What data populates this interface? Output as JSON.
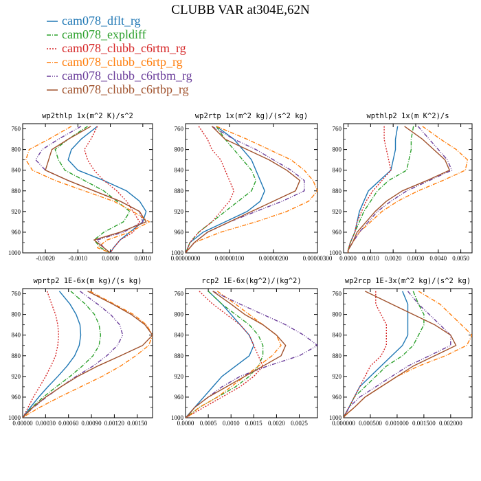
{
  "figure": {
    "title": "CLUBB VAR at304E,62N"
  },
  "legend": [
    {
      "name": "cam078_dflt_rg",
      "color": "#1f77b4",
      "dash": ""
    },
    {
      "name": "cam078_expldiff",
      "color": "#2ca02c",
      "dash": "6,2,1,2"
    },
    {
      "name": "cam078_clubb_c6rtm_rg",
      "color": "#d62728",
      "dash": "2,2"
    },
    {
      "name": "cam078_clubb_c6rtp_rg",
      "color": "#ff7f0e",
      "dash": "6,2,1,2"
    },
    {
      "name": "cam078_clubb_c6rtbm_rg",
      "color": "#6a3d9a",
      "dash": "6,2,1,2,1,2"
    },
    {
      "name": "cam078_clubb_c6rtbp_rg",
      "color": "#a0522d",
      "dash": ""
    }
  ],
  "chart_data": [
    {
      "type": "line",
      "title": "wp2thlp  1x(m^2 K)/s^2",
      "xlim": [
        -0.0027,
        0.0013
      ],
      "ylim": [
        1000,
        750
      ],
      "xticks": [
        "-0.0020",
        "-0.0010",
        "0.0000",
        "0.0010"
      ],
      "xtick_values": [
        -0.002,
        -0.001,
        0,
        0.001
      ],
      "yticks": [
        760,
        800,
        840,
        880,
        920,
        960,
        1000
      ],
      "y": [
        755,
        780,
        800,
        820,
        840,
        860,
        880,
        900,
        920,
        940,
        960,
        975,
        990,
        1000
      ],
      "series": [
        {
          "name": "cam078_dflt_rg",
          "values": [
            -0.0004,
            -0.0009,
            -0.0012,
            -0.0013,
            -0.001,
            -0.0002,
            0.0005,
            0.0009,
            0.0011,
            0.001,
            0.0006,
            0.0003,
            0.0001,
            0
          ]
        },
        {
          "name": "cam078_expldiff",
          "values": [
            -0.0007,
            -0.0013,
            -0.0017,
            -0.0016,
            -0.0014,
            -0.0008,
            -0.0002,
            0.0002,
            0.0006,
            0.0004,
            -0.0002,
            -0.0005,
            -0.0003,
            0
          ]
        },
        {
          "name": "cam078_clubb_c6rtm_rg",
          "values": [
            -0.0004,
            -0.0006,
            -0.0008,
            -0.0007,
            -0.0005,
            -0.0002,
            0.0002,
            0.0005,
            0.0007,
            0.0009,
            0.0007,
            0.0003,
            0.0001,
            0
          ]
        },
        {
          "name": "cam078_clubb_c6rtp_rg",
          "values": [
            -0.0012,
            -0.0019,
            -0.0025,
            -0.0026,
            -0.0024,
            -0.0017,
            -0.0008,
            0.0001,
            0.0007,
            0.0012,
            0.0006,
            -0.0001,
            -0.0004,
            0
          ]
        },
        {
          "name": "cam078_clubb_c6rtbm_rg",
          "values": [
            -0.0009,
            -0.0016,
            -0.0021,
            -0.0023,
            -0.002,
            -0.0013,
            -0.0005,
            0.0003,
            0.0009,
            0.001,
            0.0004,
            -0.0004,
            -0.0002,
            0
          ]
        },
        {
          "name": "cam078_clubb_c6rtbp_rg",
          "values": [
            -0.0006,
            -0.0013,
            -0.0018,
            -0.0019,
            -0.002,
            -0.0013,
            -0.0005,
            0.0003,
            0.0009,
            0.0011,
            0.0003,
            -0.0005,
            -0.0002,
            0
          ]
        }
      ]
    },
    {
      "type": "line",
      "title": "wp2rtp  1x(m^2 kg)/(s^2 kg)",
      "xlim": [
        0,
        3e-06
      ],
      "ylim": [
        1000,
        750
      ],
      "xticks": [
        "0.00000000",
        "0.00000100",
        "0.00000200",
        "0.00000300"
      ],
      "xtick_values": [
        0,
        1e-06,
        2e-06,
        3e-06
      ],
      "yticks": [
        760,
        800,
        840,
        880,
        920,
        960,
        1000
      ],
      "y": [
        755,
        780,
        800,
        820,
        840,
        860,
        880,
        900,
        920,
        940,
        960,
        980,
        995,
        1000
      ],
      "series": [
        {
          "name": "cam078_dflt_rg",
          "values": [
            7e-07,
            1.1e-06,
            1.3e-06,
            1.5e-06,
            1.6e-06,
            1.7e-06,
            1.8e-06,
            1.7e-06,
            1.4e-06,
            9e-07,
            4e-07,
            1e-07,
            3e-08,
            0
          ]
        },
        {
          "name": "cam078_expldiff",
          "values": [
            7e-07,
            9e-07,
            1.1e-06,
            1.3e-06,
            1.5e-06,
            1.6e-06,
            1.5e-06,
            1.2e-06,
            9e-07,
            6e-07,
            3e-07,
            1e-07,
            3e-08,
            0
          ]
        },
        {
          "name": "cam078_clubb_c6rtm_rg",
          "values": [
            3e-07,
            5e-07,
            6e-07,
            8e-07,
            9e-07,
            1e-06,
            1.1e-06,
            1e-06,
            8e-07,
            6e-07,
            3e-07,
            1e-07,
            3e-08,
            0
          ]
        },
        {
          "name": "cam078_clubb_c6rtp_rg",
          "values": [
            7e-07,
            1.4e-06,
            1.9e-06,
            2.4e-06,
            2.7e-06,
            2.9e-06,
            3e-06,
            2.8e-06,
            2.3e-06,
            1.6e-06,
            8e-07,
            2e-07,
            5e-08,
            0
          ]
        },
        {
          "name": "cam078_clubb_c6rtbm_rg",
          "values": [
            6e-07,
            1.1e-06,
            1.6e-06,
            2e-06,
            2.4e-06,
            2.7e-06,
            2.7e-06,
            2.2e-06,
            1.6e-06,
            1e-06,
            5e-07,
            2e-07,
            5e-08,
            0
          ]
        },
        {
          "name": "cam078_clubb_c6rtbp_rg",
          "values": [
            6e-07,
            9e-07,
            1.4e-06,
            1.9e-06,
            2.3e-06,
            2.6e-06,
            2.5e-06,
            2e-06,
            1.5e-06,
            1e-06,
            5e-07,
            2e-07,
            5e-08,
            0
          ]
        }
      ]
    },
    {
      "type": "line",
      "title": "wpthlp2  1x(m K^2)/s",
      "xlim": [
        -0.0002,
        0.0055
      ],
      "ylim": [
        1000,
        750
      ],
      "xticks": [
        "0.0000",
        "0.0010",
        "0.0020",
        "0.0030",
        "0.0040",
        "0.0050"
      ],
      "xtick_values": [
        0,
        0.001,
        0.002,
        0.003,
        0.004,
        0.005
      ],
      "yticks": [
        760,
        800,
        840,
        880,
        920,
        960,
        1000
      ],
      "y": [
        755,
        780,
        800,
        820,
        840,
        860,
        880,
        900,
        920,
        940,
        960,
        980,
        995,
        1000
      ],
      "series": [
        {
          "name": "cam078_dflt_rg",
          "values": [
            0.0022,
            0.0021,
            0.0021,
            0.002,
            0.0019,
            0.0014,
            0.0009,
            0.0007,
            0.0005,
            0.0004,
            0.0003,
            0.0001,
            0,
            0
          ]
        },
        {
          "name": "cam078_expldiff",
          "values": [
            0.0029,
            0.0028,
            0.0028,
            0.0027,
            0.0026,
            0.0018,
            0.0013,
            0.001,
            0.0007,
            0.0005,
            0.0003,
            0.0001,
            0,
            0
          ]
        },
        {
          "name": "cam078_clubb_c6rtm_rg",
          "values": [
            0.0016,
            0.0016,
            0.0017,
            0.0018,
            0.0019,
            0.0015,
            0.0011,
            0.0008,
            0.0006,
            0.0004,
            0.0003,
            0.0001,
            0,
            0
          ]
        },
        {
          "name": "cam078_clubb_c6rtp_rg",
          "values": [
            0.0033,
            0.0041,
            0.0048,
            0.0053,
            0.0052,
            0.0042,
            0.0031,
            0.0022,
            0.0015,
            0.001,
            0.0005,
            0.0002,
            0,
            0
          ]
        },
        {
          "name": "cam078_clubb_c6rtbm_rg",
          "values": [
            0.0031,
            0.0036,
            0.004,
            0.0044,
            0.0046,
            0.0036,
            0.0026,
            0.0019,
            0.0013,
            0.0009,
            0.0005,
            0.0002,
            0,
            0
          ]
        },
        {
          "name": "cam078_clubb_c6rtbp_rg",
          "values": [
            0.0025,
            0.0033,
            0.0038,
            0.0043,
            0.0045,
            0.0035,
            0.0024,
            0.0017,
            0.0012,
            0.0008,
            0.0004,
            0.0002,
            0,
            0
          ]
        }
      ]
    },
    {
      "type": "line",
      "title": "wprtp2  1E-6x(m kg)/(s kg)",
      "xlim": [
        0,
        0.0017
      ],
      "ylim": [
        1000,
        750
      ],
      "xticks": [
        "0.00000",
        "0.00030",
        "0.00060",
        "0.00090",
        "0.00120",
        "0.00150"
      ],
      "xtick_values": [
        0,
        0.0003,
        0.0006,
        0.0009,
        0.0012,
        0.0015
      ],
      "yticks": [
        760,
        800,
        840,
        880,
        920,
        960,
        1000
      ],
      "y": [
        755,
        780,
        800,
        820,
        840,
        860,
        880,
        900,
        920,
        940,
        960,
        980,
        995,
        1000
      ],
      "series": [
        {
          "name": "cam078_dflt_rg",
          "values": [
            0.00048,
            0.00062,
            0.0007,
            0.00075,
            0.00076,
            0.00074,
            0.00068,
            0.00058,
            0.00046,
            0.00033,
            0.00021,
            0.0001,
            2e-05,
            0
          ]
        },
        {
          "name": "cam078_expldiff",
          "values": [
            0.00063,
            0.00082,
            0.00094,
            0.001,
            0.00102,
            0.001,
            0.00092,
            0.00078,
            0.00062,
            0.00044,
            0.00027,
            0.00012,
            3e-05,
            0
          ]
        },
        {
          "name": "cam078_clubb_c6rtm_rg",
          "values": [
            0.00032,
            0.00038,
            0.00043,
            0.00046,
            0.00047,
            0.00046,
            0.00043,
            0.00037,
            0.0003,
            0.00022,
            0.00014,
            7e-05,
            2e-05,
            0
          ]
        },
        {
          "name": "cam078_clubb_c6rtp_rg",
          "values": [
            0.00088,
            0.0012,
            0.00145,
            0.00162,
            0.0017,
            0.00165,
            0.00148,
            0.00128,
            0.00104,
            0.00076,
            0.00048,
            0.00022,
            5e-05,
            0
          ]
        },
        {
          "name": "cam078_clubb_c6rtbm_rg",
          "values": [
            0.00075,
            0.00098,
            0.00115,
            0.00127,
            0.00131,
            0.00124,
            0.0011,
            0.00092,
            0.0007,
            0.0005,
            0.00031,
            0.00014,
            3e-05,
            0
          ]
        },
        {
          "name": "cam078_clubb_c6rtbp_rg",
          "values": [
            0.00085,
            0.00118,
            0.00142,
            0.0016,
            0.0017,
            0.00157,
            0.00128,
            0.00098,
            0.00072,
            0.0005,
            0.0003,
            0.00013,
            3e-05,
            0
          ]
        }
      ]
    },
    {
      "type": "line",
      "title": "rcp2  1E-6x(kg^2)/(kg^2)",
      "xlim": [
        0,
        0.0029
      ],
      "ylim": [
        1000,
        750
      ],
      "xticks": [
        "0.0000",
        "0.0005",
        "0.0010",
        "0.0015",
        "0.0020",
        "0.0025"
      ],
      "xtick_values": [
        0,
        0.0005,
        0.001,
        0.0015,
        0.002,
        0.0025
      ],
      "yticks": [
        760,
        800,
        840,
        880,
        920,
        960,
        1000
      ],
      "y": [
        755,
        780,
        800,
        820,
        840,
        860,
        880,
        900,
        920,
        940,
        960,
        980,
        995,
        1000
      ],
      "series": [
        {
          "name": "cam078_dflt_rg",
          "values": [
            0.0005,
            0.0008,
            0.001,
            0.0012,
            0.0014,
            0.0015,
            0.0014,
            0.0011,
            0.0008,
            0.0006,
            0.0004,
            0.0002,
            5e-05,
            0
          ]
        },
        {
          "name": "cam078_expldiff",
          "values": [
            0.0005,
            0.0008,
            0.0011,
            0.0014,
            0.0016,
            0.0017,
            0.0017,
            0.0016,
            0.0014,
            0.0011,
            0.0007,
            0.0003,
            8e-05,
            0
          ]
        },
        {
          "name": "cam078_clubb_c6rtm_rg",
          "values": [
            0.0003,
            0.0006,
            0.0009,
            0.0012,
            0.0014,
            0.0015,
            0.0016,
            0.0017,
            0.0015,
            0.0012,
            0.0008,
            0.0004,
            0.0001,
            0
          ]
        },
        {
          "name": "cam078_clubb_c6rtp_rg",
          "values": [
            0.0007,
            0.0011,
            0.0014,
            0.0017,
            0.002,
            0.0021,
            0.0019,
            0.0016,
            0.0013,
            0.001,
            0.0007,
            0.0003,
            0.0001,
            0
          ]
        },
        {
          "name": "cam078_clubb_c6rtbm_rg",
          "values": [
            0.0006,
            0.0012,
            0.0017,
            0.0022,
            0.0026,
            0.0029,
            0.0025,
            0.0018,
            0.0012,
            0.0008,
            0.0005,
            0.0002,
            6e-05,
            0
          ]
        },
        {
          "name": "cam078_clubb_c6rtbp_rg",
          "values": [
            0.0006,
            0.001,
            0.0013,
            0.0017,
            0.002,
            0.0022,
            0.0021,
            0.0017,
            0.0013,
            0.0009,
            0.0005,
            0.0002,
            6e-05,
            0
          ]
        }
      ]
    },
    {
      "type": "line",
      "title": "wp2rcp  1E-3x(m^2 kg)/(s^2 kg)",
      "xlim": [
        0,
        0.0024
      ],
      "ylim": [
        1000,
        750
      ],
      "xticks": [
        "0.000000",
        "0.000500",
        "0.001000",
        "0.001500",
        "0.002000"
      ],
      "xtick_values": [
        0,
        0.0005,
        0.001,
        0.0015,
        0.002
      ],
      "yticks": [
        760,
        800,
        840,
        880,
        920,
        960,
        1000
      ],
      "y": [
        755,
        780,
        800,
        820,
        840,
        860,
        880,
        900,
        920,
        940,
        960,
        980,
        995,
        1000
      ],
      "series": [
        {
          "name": "cam078_dflt_rg",
          "values": [
            0.0011,
            0.0012,
            0.0012,
            0.0012,
            0.0012,
            0.0011,
            0.0009,
            0.0007,
            0.0005,
            0.0003,
            0.0002,
            0.0001,
            2e-05,
            0
          ]
        },
        {
          "name": "cam078_expldiff",
          "values": [
            0.0013,
            0.0014,
            0.0015,
            0.0015,
            0.0014,
            0.0013,
            0.0011,
            0.0008,
            0.0006,
            0.0004,
            0.0002,
            0.0001,
            2e-05,
            0
          ]
        },
        {
          "name": "cam078_clubb_c6rtm_rg",
          "values": [
            0.0006,
            0.0006,
            0.0007,
            0.0008,
            0.0008,
            0.0008,
            0.0007,
            0.0005,
            0.0004,
            0.0003,
            0.0002,
            0.0001,
            2e-05,
            0
          ]
        },
        {
          "name": "cam078_clubb_c6rtp_rg",
          "values": [
            0.0014,
            0.0018,
            0.002,
            0.0022,
            0.0024,
            0.0023,
            0.0019,
            0.0014,
            0.001,
            0.0007,
            0.0004,
            0.0002,
            4e-05,
            0
          ]
        },
        {
          "name": "cam078_clubb_c6rtbm_rg",
          "values": [
            0.0012,
            0.0014,
            0.0016,
            0.0018,
            0.002,
            0.002,
            0.0016,
            0.0012,
            0.0009,
            0.0006,
            0.0003,
            0.0001,
            3e-05,
            0
          ]
        },
        {
          "name": "cam078_clubb_c6rtbp_rg",
          "values": [
            0.0004,
            0.0009,
            0.0013,
            0.0017,
            0.002,
            0.0021,
            0.0017,
            0.0013,
            0.001,
            0.0007,
            0.0004,
            0.0002,
            3e-05,
            0
          ]
        }
      ]
    }
  ]
}
